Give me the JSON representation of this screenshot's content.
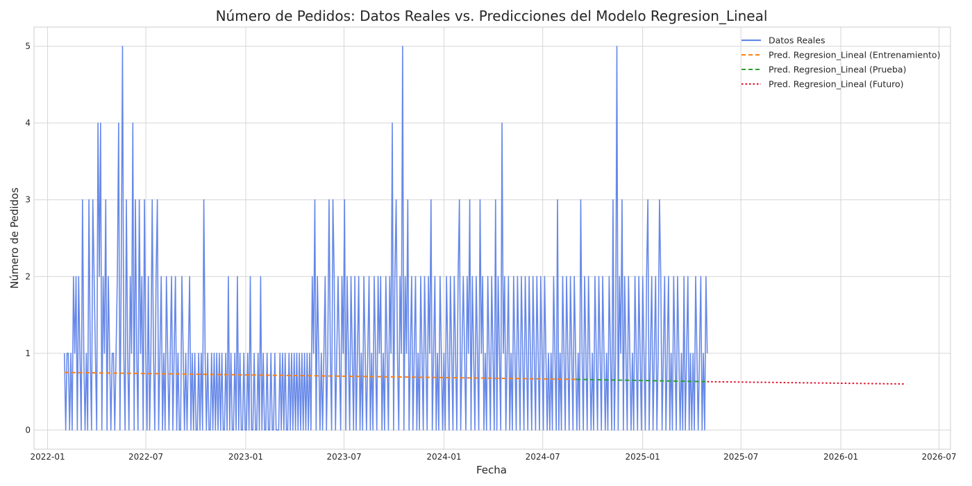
{
  "chart_data": {
    "type": "line",
    "title": "Número de Pedidos: Datos Reales vs. Predicciones del Modelo Regresion_Lineal",
    "xlabel": "Fecha",
    "ylabel": "Número de Pedidos",
    "xlim": [
      "2021-12-07",
      "2026-07-22"
    ],
    "ylim": [
      -0.25,
      5.25
    ],
    "grid": true,
    "legend_position": "top-right",
    "x_ticks": [
      "2022-01",
      "2022-07",
      "2023-01",
      "2023-07",
      "2024-01",
      "2024-07",
      "2025-01",
      "2025-07",
      "2026-01",
      "2026-07"
    ],
    "y_ticks": [
      0,
      1,
      2,
      3,
      4,
      5
    ],
    "series": [
      {
        "name": "Datos Reales",
        "style": "solid",
        "color": "#6688e8",
        "date_range": [
          "2022-02-01",
          "2025-04-30"
        ],
        "values": [
          1,
          0,
          1,
          1,
          0,
          1,
          0,
          2,
          1,
          2,
          0,
          2,
          1,
          0,
          3,
          1,
          0,
          1,
          0,
          3,
          1,
          0,
          3,
          2,
          1,
          0,
          4,
          2,
          4,
          0,
          2,
          1,
          3,
          0,
          2,
          1,
          0,
          1,
          1,
          0,
          1,
          2,
          4,
          0,
          2,
          5,
          1,
          0,
          3,
          1,
          0,
          2,
          1,
          4,
          0,
          3,
          1,
          0,
          3,
          1,
          2,
          0,
          3,
          1,
          0,
          2,
          0,
          1,
          3,
          1,
          0,
          2,
          3,
          0,
          1,
          2,
          0,
          1,
          0,
          2,
          1,
          0,
          1,
          2,
          0,
          1,
          2,
          0,
          1,
          0,
          0,
          2,
          1,
          0,
          1,
          0,
          1,
          2,
          0,
          1,
          0,
          1,
          0,
          0,
          1,
          0,
          1,
          0,
          3,
          1,
          0,
          1,
          0,
          0,
          1,
          0,
          1,
          0,
          1,
          0,
          1,
          0,
          1,
          0,
          0,
          1,
          0,
          2,
          0,
          1,
          0,
          0,
          1,
          0,
          2,
          0,
          1,
          0,
          0,
          1,
          0,
          0,
          1,
          0,
          2,
          0,
          0,
          1,
          0,
          0,
          1,
          0,
          2,
          0,
          1,
          0,
          0,
          1,
          0,
          0,
          1,
          0,
          0,
          1,
          0,
          0,
          0,
          1,
          0,
          1,
          0,
          1,
          0,
          0,
          1,
          0,
          1,
          0,
          1,
          0,
          1,
          0,
          1,
          0,
          1,
          0,
          1,
          0,
          1,
          0,
          1,
          0,
          2,
          1,
          3,
          0,
          2,
          1,
          0,
          1,
          0,
          1,
          2,
          0,
          1,
          3,
          1,
          0,
          3,
          2,
          0,
          1,
          2,
          1,
          0,
          2,
          1,
          3,
          0,
          2,
          1,
          0,
          2,
          1,
          0,
          2,
          0,
          1,
          2,
          0,
          1,
          0,
          2,
          1,
          0,
          1,
          2,
          0,
          1,
          0,
          2,
          1,
          0,
          2,
          1,
          2,
          0,
          1,
          0,
          2,
          1,
          0,
          2,
          1,
          4,
          0,
          2,
          3,
          1,
          0,
          2,
          1,
          5,
          0,
          2,
          1,
          3,
          0,
          1,
          2,
          0,
          1,
          2,
          0,
          1,
          0,
          2,
          1,
          0,
          2,
          1,
          0,
          2,
          1,
          3,
          0,
          1,
          2,
          0,
          1,
          0,
          2,
          1,
          0,
          1,
          0,
          2,
          1,
          0,
          2,
          1,
          0,
          2,
          1,
          0,
          2,
          3,
          0,
          1,
          2,
          1,
          0,
          2,
          1,
          3,
          0,
          2,
          1,
          0,
          2,
          1,
          0,
          3,
          1,
          2,
          0,
          1,
          0,
          2,
          1,
          0,
          2,
          1,
          0,
          3,
          0,
          2,
          1,
          0,
          4,
          1,
          2,
          0,
          1,
          2,
          0,
          1,
          0,
          2,
          1,
          0,
          2,
          1,
          0,
          2,
          1,
          0,
          2,
          1,
          0,
          2,
          1,
          0,
          2,
          1,
          0,
          2,
          1,
          0,
          2,
          1,
          0,
          2,
          1,
          0,
          1,
          0,
          1,
          0,
          2,
          1,
          0,
          3,
          0,
          1,
          0,
          2,
          1,
          0,
          2,
          1,
          0,
          2,
          1,
          0,
          2,
          1,
          0,
          1,
          0,
          3,
          1,
          0,
          2,
          1,
          0,
          2,
          1,
          0,
          1,
          0,
          2,
          1,
          0,
          2,
          1,
          0,
          2,
          1,
          0,
          1,
          0,
          2,
          1,
          0,
          3,
          0,
          1,
          5,
          0,
          2,
          1,
          3,
          0,
          2,
          1,
          0,
          2,
          1,
          0,
          1,
          0,
          2,
          1,
          0,
          2,
          1,
          0,
          2,
          1,
          0,
          2,
          3,
          0,
          1,
          2,
          0,
          1,
          2,
          0,
          1,
          3,
          2,
          0,
          1,
          2,
          0,
          1,
          2,
          0,
          1,
          0,
          2,
          1,
          0,
          2,
          1,
          0,
          1,
          0,
          2,
          0,
          1,
          2,
          0,
          1,
          0,
          1,
          0,
          2,
          1,
          0,
          1,
          2,
          0,
          1,
          0,
          2,
          1
        ]
      },
      {
        "name": "Pred. Regresion_Lineal (Entrenamiento)",
        "style": "dashed",
        "color": "#ff7f0e",
        "x": [
          "2022-02-01",
          "2024-09-01"
        ],
        "y": [
          0.75,
          0.66
        ]
      },
      {
        "name": "Pred. Regresion_Lineal (Prueba)",
        "style": "dashed",
        "color": "#2ca02c",
        "x": [
          "2024-09-01",
          "2025-04-30"
        ],
        "y": [
          0.66,
          0.63
        ]
      },
      {
        "name": "Pred. Regresion_Lineal (Futuro)",
        "style": "dotted",
        "color": "#e0102c",
        "x": [
          "2025-04-30",
          "2026-04-30"
        ],
        "y": [
          0.63,
          0.6
        ]
      }
    ]
  }
}
